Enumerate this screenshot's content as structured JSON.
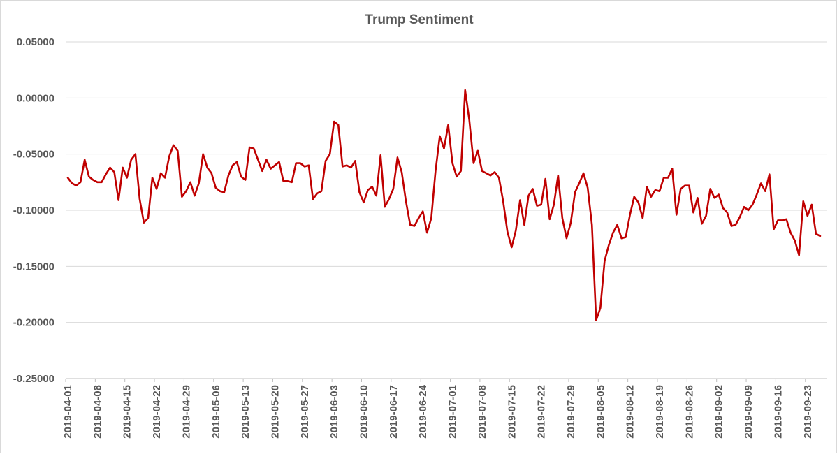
{
  "chart_data": {
    "type": "line",
    "title": "Trump Sentiment",
    "xlabel": "",
    "ylabel": "",
    "ylim": [
      -0.25,
      0.05
    ],
    "y_ticks": [
      0.05,
      0.0,
      -0.05,
      -0.1,
      -0.15,
      -0.2,
      -0.25
    ],
    "y_tick_labels": [
      "0.05000",
      "0.00000",
      "-0.05000",
      "-0.10000",
      "-0.15000",
      "-0.20000",
      "-0.25000"
    ],
    "x_start": "2019-04-01",
    "x_end": "2019-09-27",
    "x_tick_labels": [
      "2019-04-01",
      "2019-04-08",
      "2019-04-15",
      "2019-04-22",
      "2019-04-29",
      "2019-05-06",
      "2019-05-13",
      "2019-05-20",
      "2019-05-27",
      "2019-06-03",
      "2019-06-10",
      "2019-06-17",
      "2019-06-24",
      "2019-07-01",
      "2019-07-08",
      "2019-07-15",
      "2019-07-22",
      "2019-07-29",
      "2019-08-05",
      "2019-08-12",
      "2019-08-19",
      "2019-08-26",
      "2019-09-02",
      "2019-09-09",
      "2019-09-16",
      "2019-09-23"
    ],
    "grid": true,
    "legend": "none",
    "series": [
      {
        "name": "Trump Sentiment",
        "color": "#c00000",
        "values": [
          -0.071,
          -0.076,
          -0.078,
          -0.075,
          -0.055,
          -0.07,
          -0.073,
          -0.075,
          -0.075,
          -0.068,
          -0.062,
          -0.066,
          -0.091,
          -0.062,
          -0.071,
          -0.055,
          -0.05,
          -0.09,
          -0.111,
          -0.107,
          -0.071,
          -0.081,
          -0.067,
          -0.071,
          -0.052,
          -0.042,
          -0.047,
          -0.088,
          -0.083,
          -0.075,
          -0.087,
          -0.076,
          -0.05,
          -0.062,
          -0.067,
          -0.08,
          -0.083,
          -0.084,
          -0.069,
          -0.06,
          -0.057,
          -0.07,
          -0.073,
          -0.044,
          -0.045,
          -0.055,
          -0.065,
          -0.055,
          -0.063,
          -0.06,
          -0.057,
          -0.074,
          -0.074,
          -0.075,
          -0.058,
          -0.058,
          -0.061,
          -0.06,
          -0.09,
          -0.085,
          -0.083,
          -0.056,
          -0.05,
          -0.021,
          -0.024,
          -0.061,
          -0.06,
          -0.062,
          -0.056,
          -0.084,
          -0.093,
          -0.082,
          -0.079,
          -0.087,
          -0.051,
          -0.097,
          -0.09,
          -0.081,
          -0.053,
          -0.066,
          -0.092,
          -0.113,
          -0.114,
          -0.107,
          -0.101,
          -0.12,
          -0.107,
          -0.065,
          -0.034,
          -0.045,
          -0.024,
          -0.058,
          -0.07,
          -0.065,
          0.007,
          -0.02,
          -0.058,
          -0.047,
          -0.065,
          -0.067,
          -0.069,
          -0.066,
          -0.071,
          -0.092,
          -0.119,
          -0.133,
          -0.118,
          -0.091,
          -0.113,
          -0.087,
          -0.081,
          -0.096,
          -0.095,
          -0.072,
          -0.108,
          -0.095,
          -0.069,
          -0.107,
          -0.125,
          -0.111,
          -0.084,
          -0.076,
          -0.067,
          -0.08,
          -0.113,
          -0.198,
          -0.187,
          -0.145,
          -0.131,
          -0.12,
          -0.113,
          -0.125,
          -0.124,
          -0.104,
          -0.088,
          -0.093,
          -0.107,
          -0.079,
          -0.088,
          -0.082,
          -0.083,
          -0.071,
          -0.071,
          -0.063,
          -0.104,
          -0.081,
          -0.078,
          -0.078,
          -0.102,
          -0.089,
          -0.112,
          -0.105,
          -0.081,
          -0.089,
          -0.086,
          -0.098,
          -0.102,
          -0.114,
          -0.113,
          -0.106,
          -0.097,
          -0.1,
          -0.095,
          -0.086,
          -0.076,
          -0.083,
          -0.068,
          -0.117,
          -0.109,
          -0.109,
          -0.108,
          -0.12,
          -0.127,
          -0.14,
          -0.092,
          -0.105,
          -0.095,
          -0.121,
          -0.123
        ]
      }
    ]
  }
}
